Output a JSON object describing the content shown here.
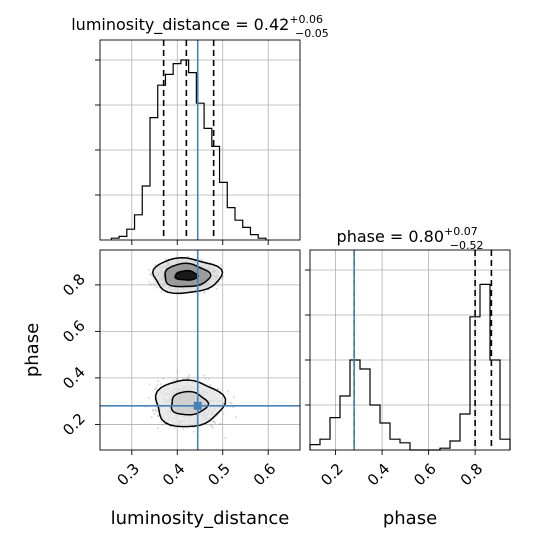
{
  "chart_data": [
    {
      "type": "histogram",
      "panel": "luminosity_distance-marginal",
      "title": {
        "prefix": "luminosity_distance = 0.42",
        "sup": "+0.06",
        "sub": "−0.05"
      },
      "xlim": [
        0.23,
        0.67
      ],
      "bin_edges": [
        0.255,
        0.272,
        0.289,
        0.306,
        0.323,
        0.34,
        0.357,
        0.374,
        0.391,
        0.408,
        0.425,
        0.442,
        0.459,
        0.476,
        0.493,
        0.51,
        0.527,
        0.544,
        0.561,
        0.578,
        0.595
      ],
      "counts": [
        0.01,
        0.02,
        0.06,
        0.14,
        0.3,
        0.68,
        0.86,
        0.92,
        0.98,
        1.0,
        0.93,
        0.76,
        0.62,
        0.52,
        0.32,
        0.18,
        0.11,
        0.07,
        0.03,
        0.01
      ],
      "quantiles": [
        0.37,
        0.42,
        0.48
      ],
      "truth": 0.445,
      "colors": {
        "hist": "#000000",
        "truth": "#4682b4"
      }
    },
    {
      "type": "scatter",
      "panel": "phase-vs-luminosity_distance",
      "xlim": [
        0.23,
        0.67
      ],
      "ylim": [
        0.09,
        0.95
      ],
      "xlabel": "luminosity_distance",
      "ylabel": "phase",
      "xticks": [
        "0.3",
        "0.4",
        "0.5",
        "0.6"
      ],
      "xtick_values": [
        0.3,
        0.4,
        0.5,
        0.6
      ],
      "yticks": [
        "0.2",
        "0.4",
        "0.6",
        "0.8"
      ],
      "ytick_values": [
        0.2,
        0.4,
        0.6,
        0.8
      ],
      "clusters": [
        {
          "center": [
            0.42,
            0.84
          ],
          "spread": [
            0.045,
            0.04
          ],
          "n": 900
        },
        {
          "center": [
            0.425,
            0.29
          ],
          "spread": [
            0.05,
            0.07
          ],
          "n": 800
        }
      ],
      "contours": [
        {
          "center": [
            0.42,
            0.84
          ],
          "rx": [
            0.025,
            0.05,
            0.075
          ],
          "ry": [
            0.02,
            0.05,
            0.075
          ]
        },
        {
          "center": [
            0.425,
            0.29
          ],
          "rx": [
            0.04,
            0.075
          ],
          "ry": [
            0.05,
            0.1
          ]
        }
      ],
      "truth": [
        0.445,
        0.28
      ],
      "colors": {
        "points": "#7f7f7f",
        "contour": "#000000",
        "truth": "#4682b4"
      }
    },
    {
      "type": "histogram",
      "panel": "phase-marginal",
      "title": {
        "prefix": "phase = 0.80",
        "sup": "+0.07",
        "sub": "−0.52"
      },
      "xlim": [
        0.09,
        0.95
      ],
      "xlabel": "phase",
      "xticks": [
        "0.2",
        "0.4",
        "0.6",
        "0.8"
      ],
      "xtick_values": [
        0.2,
        0.4,
        0.6,
        0.8
      ],
      "bin_edges": [
        0.09,
        0.133,
        0.176,
        0.219,
        0.262,
        0.305,
        0.348,
        0.391,
        0.434,
        0.477,
        0.52,
        0.563,
        0.606,
        0.649,
        0.692,
        0.735,
        0.778,
        0.821,
        0.864,
        0.907,
        0.95
      ],
      "counts": [
        0.03,
        0.06,
        0.18,
        0.3,
        0.5,
        0.45,
        0.25,
        0.15,
        0.06,
        0.04,
        0.0,
        0.0,
        0.0,
        0.01,
        0.05,
        0.2,
        0.74,
        0.92,
        0.5,
        0.06
      ],
      "quantiles": [
        0.28,
        0.8,
        0.87
      ],
      "truth": 0.28,
      "colors": {
        "hist": "#000000",
        "truth": "#4682b4"
      }
    }
  ]
}
